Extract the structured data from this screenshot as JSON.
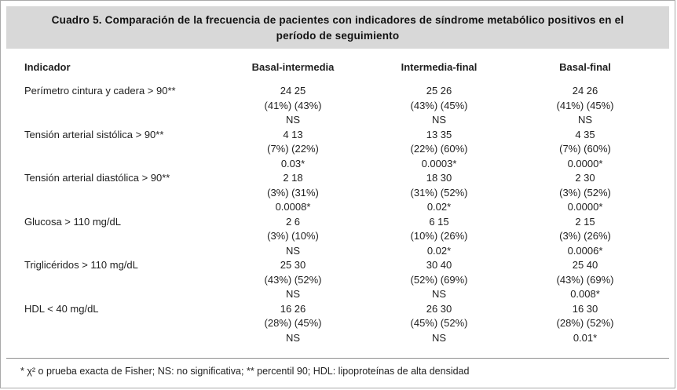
{
  "title": "Cuadro 5. Comparación de la frecuencia de pacientes con indicadores de síndrome metabólico positivos en el período de seguimiento",
  "table": {
    "headers": [
      "Indicador",
      "Basal-intermedia",
      "Intermedia-final",
      "Basal-final"
    ],
    "rows": [
      {
        "indicator": "Perímetro cintura y cadera > 90**",
        "cells": [
          {
            "counts": "24 25",
            "percents": "(41%) (43%)",
            "p_value": "NS"
          },
          {
            "counts": "25 26",
            "percents": "(43%) (45%)",
            "p_value": "NS"
          },
          {
            "counts": "24 26",
            "percents": "(41%) (45%)",
            "p_value": "NS"
          }
        ]
      },
      {
        "indicator": "Tensión arterial sistólica > 90**",
        "cells": [
          {
            "counts": "4 13",
            "percents": "(7%) (22%)",
            "p_value": "0.03*"
          },
          {
            "counts": "13 35",
            "percents": "(22%) (60%)",
            "p_value": "0.0003*"
          },
          {
            "counts": "4 35",
            "percents": "(7%) (60%)",
            "p_value": "0.0000*"
          }
        ]
      },
      {
        "indicator": "Tensión arterial diastólica > 90**",
        "cells": [
          {
            "counts": "2 18",
            "percents": "(3%) (31%)",
            "p_value": "0.0008*"
          },
          {
            "counts": "18 30",
            "percents": "(31%) (52%)",
            "p_value": "0.02*"
          },
          {
            "counts": "2 30",
            "percents": "(3%) (52%)",
            "p_value": "0.0000*"
          }
        ]
      },
      {
        "indicator": "Glucosa > 110 mg/dL",
        "cells": [
          {
            "counts": "2 6",
            "percents": "(3%) (10%)",
            "p_value": "NS"
          },
          {
            "counts": "6 15",
            "percents": "(10%) (26%)",
            "p_value": "0.02*"
          },
          {
            "counts": "2 15",
            "percents": "(3%) (26%)",
            "p_value": "0.0006*"
          }
        ]
      },
      {
        "indicator": "Triglicéridos > 110 mg/dL",
        "cells": [
          {
            "counts": "25 30",
            "percents": "(43%) (52%)",
            "p_value": "NS"
          },
          {
            "counts": "30 40",
            "percents": "(52%) (69%)",
            "p_value": "NS"
          },
          {
            "counts": "25 40",
            "percents": "(43%) (69%)",
            "p_value": "0.008*"
          }
        ]
      },
      {
        "indicator": "HDL < 40 mg/dL",
        "cells": [
          {
            "counts": "16 26",
            "percents": "(28%) (45%)",
            "p_value": "NS"
          },
          {
            "counts": "26 30",
            "percents": "(45%) (52%)",
            "p_value": "NS"
          },
          {
            "counts": "16 30",
            "percents": "(28%) (52%)",
            "p_value": "0.01*"
          }
        ]
      }
    ]
  },
  "footnote": "* χ² o prueba exacta de Fisher; NS: no significativa; ** percentil 90; HDL: lipoproteínas de alta densidad",
  "colors": {
    "title_bar_bg": "#d8d8d8",
    "frame_border": "#a9a9a9",
    "text": "#1f1f1f"
  }
}
